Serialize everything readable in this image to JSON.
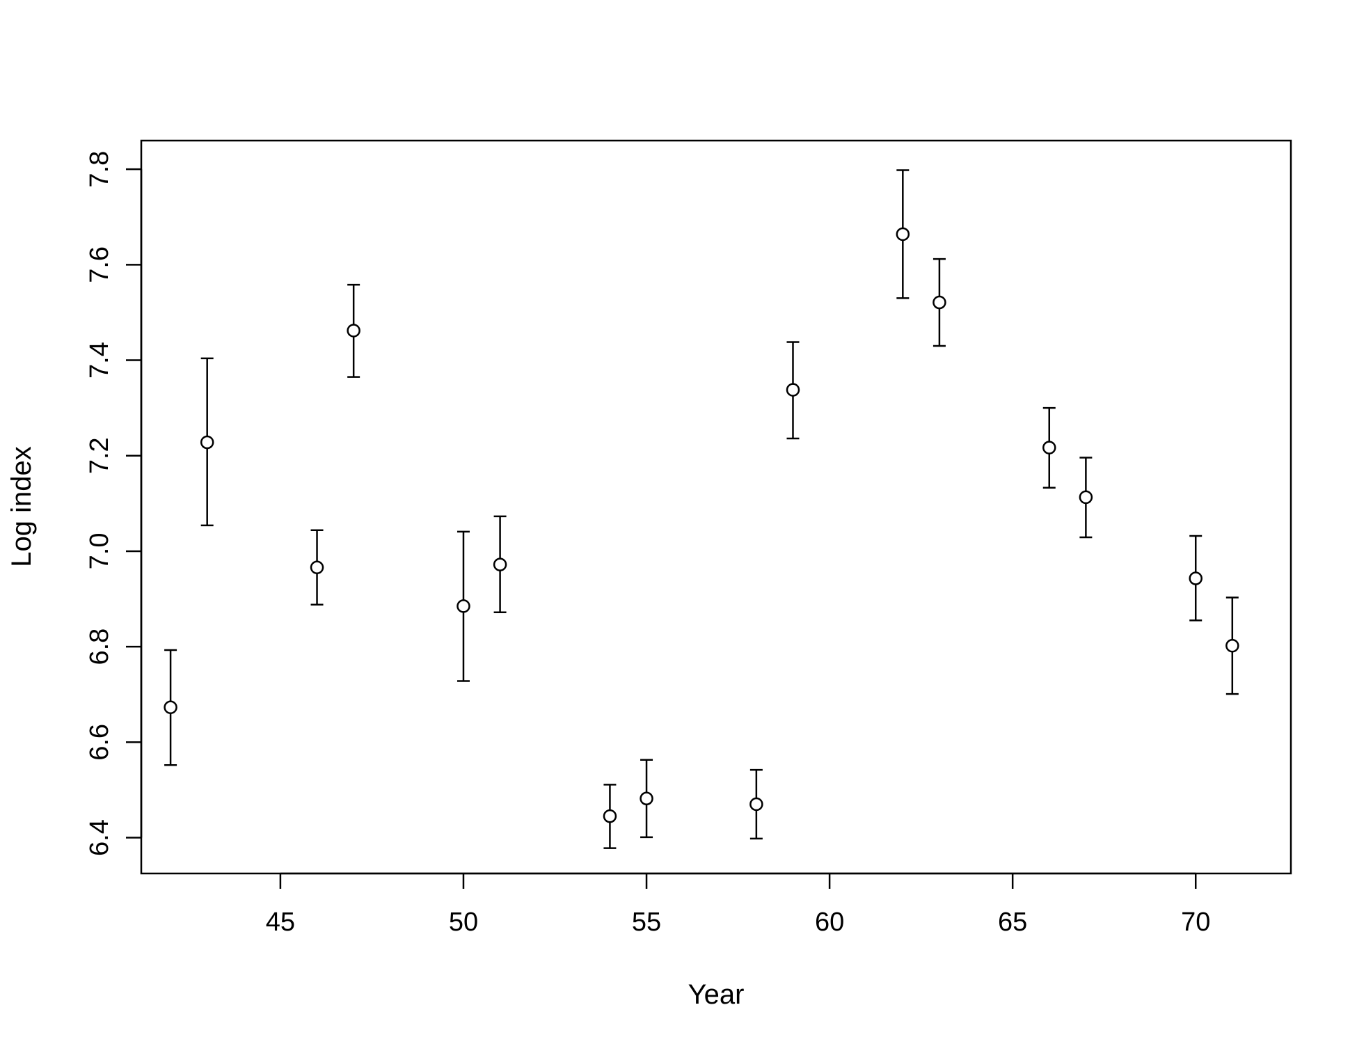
{
  "chart_data": {
    "type": "scatter",
    "title": "",
    "xlabel": "Year",
    "ylabel": "Log index",
    "xlim": [
      41.2,
      72.6
    ],
    "ylim": [
      6.325,
      7.86
    ],
    "xticks": [
      45,
      50,
      55,
      60,
      65,
      70
    ],
    "yticks": [
      6.4,
      6.6,
      6.8,
      7.0,
      7.2,
      7.4,
      7.6,
      7.8
    ],
    "grid": false,
    "legend": "none",
    "colors": {
      "marker_fill": "#ffffff",
      "stroke": "#000000"
    },
    "points": [
      {
        "x": 42,
        "y": 6.673,
        "lower": 6.552,
        "upper": 6.793
      },
      {
        "x": 43,
        "y": 7.228,
        "lower": 7.054,
        "upper": 7.404
      },
      {
        "x": 46,
        "y": 6.966,
        "lower": 6.888,
        "upper": 7.044
      },
      {
        "x": 47,
        "y": 7.462,
        "lower": 7.365,
        "upper": 7.558
      },
      {
        "x": 50,
        "y": 6.885,
        "lower": 6.728,
        "upper": 7.041
      },
      {
        "x": 51,
        "y": 6.972,
        "lower": 6.872,
        "upper": 7.073
      },
      {
        "x": 54,
        "y": 6.445,
        "lower": 6.378,
        "upper": 6.511
      },
      {
        "x": 55,
        "y": 6.482,
        "lower": 6.401,
        "upper": 6.563
      },
      {
        "x": 58,
        "y": 6.47,
        "lower": 6.398,
        "upper": 6.542
      },
      {
        "x": 59,
        "y": 7.338,
        "lower": 7.236,
        "upper": 7.438
      },
      {
        "x": 62,
        "y": 7.664,
        "lower": 7.53,
        "upper": 7.798
      },
      {
        "x": 63,
        "y": 7.521,
        "lower": 7.43,
        "upper": 7.612
      },
      {
        "x": 66,
        "y": 7.217,
        "lower": 7.133,
        "upper": 7.3
      },
      {
        "x": 67,
        "y": 7.113,
        "lower": 7.029,
        "upper": 7.196
      },
      {
        "x": 70,
        "y": 6.943,
        "lower": 6.855,
        "upper": 7.032
      },
      {
        "x": 71,
        "y": 6.802,
        "lower": 6.701,
        "upper": 6.903
      }
    ]
  }
}
